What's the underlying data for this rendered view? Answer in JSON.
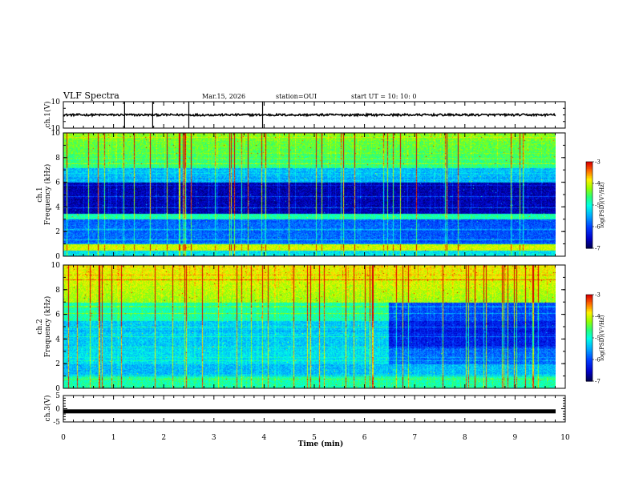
{
  "header": {
    "title": "VLF Spectra",
    "date": "Mar.15, 2026",
    "station": "station=OUI",
    "start": "start UT =  10: 10: 0"
  },
  "chart_data": [
    {
      "type": "line",
      "id": "ch1-waveform",
      "ylabel": "ch.1(V)",
      "ylim": [
        -10,
        10
      ],
      "yticks": [
        10,
        -10
      ],
      "xlim": [
        0,
        9.85
      ],
      "baseline": 0,
      "spikes_x": [
        1.22,
        1.78,
        2.5,
        3.97
      ]
    },
    {
      "type": "heatmap",
      "id": "ch1-spectrogram",
      "ylabel": "ch.1\nFrequency (kHz)",
      "ylim": [
        0,
        10
      ],
      "yticks": [
        0,
        2,
        4,
        6,
        8,
        10
      ],
      "xlim": [
        0,
        9.85
      ],
      "colorbar": {
        "label": "log(PSD)(V²/Hz)",
        "ticks": [
          -3,
          -4,
          -5,
          -6,
          -7
        ],
        "range": [
          -7,
          -3
        ]
      }
    },
    {
      "type": "heatmap",
      "id": "ch2-spectrogram",
      "ylabel": "ch.2\nFrequency (kHz)",
      "ylim": [
        0,
        10
      ],
      "yticks": [
        0,
        2,
        4,
        6,
        8,
        10
      ],
      "xlim": [
        0,
        9.85
      ],
      "colorbar": {
        "label": "log(PSD)(V²/Hz)",
        "ticks": [
          -3,
          -4,
          -5,
          -6,
          -7
        ],
        "range": [
          -7,
          -3
        ]
      }
    },
    {
      "type": "line",
      "id": "ch3-waveform",
      "ylabel": "ch.3(V)",
      "ylim": [
        -5,
        5
      ],
      "yticks": [
        5,
        0,
        -5
      ],
      "xlim": [
        0,
        9.85
      ],
      "baseline": -1,
      "xlabel": "Time (min)",
      "xticks": [
        0,
        1,
        2,
        3,
        4,
        5,
        6,
        7,
        8,
        9,
        10
      ]
    }
  ],
  "colors": {
    "scale": [
      "#00004a",
      "#0000ff",
      "#00a0ff",
      "#00ffff",
      "#00ff80",
      "#80ff00",
      "#ffff00",
      "#ff8000",
      "#ff0000",
      "#ffffff"
    ]
  }
}
